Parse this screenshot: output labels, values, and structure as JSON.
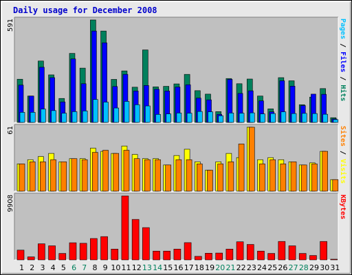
{
  "title": "Daily usage for December 2008",
  "colors": {
    "hits": "#00805c",
    "files": "#0000ff",
    "pages": "#00c0ff",
    "visits": "#ffff00",
    "sites": "#ff8000",
    "kbytes": "#ff0000",
    "weekend_label": "#00805c"
  },
  "chart_data": [
    {
      "type": "bar",
      "ylabel_max": "591",
      "legend": [
        {
          "name": "Pages",
          "color": "#00c0ff"
        },
        {
          "name": "Files",
          "color": "#0000ff"
        },
        {
          "name": "Hits",
          "color": "#00805c"
        }
      ],
      "ylim": [
        0,
        591
      ],
      "x": [
        1,
        2,
        3,
        4,
        5,
        6,
        7,
        8,
        9,
        10,
        11,
        12,
        13,
        14,
        15,
        16,
        17,
        18,
        19,
        20,
        21,
        22,
        23,
        24,
        25,
        26,
        27,
        28,
        29,
        30,
        31
      ],
      "series": [
        {
          "name": "Hits",
          "values": [
            249,
            152,
            354,
            274,
            138,
            398,
            313,
            591,
            527,
            248,
            297,
            203,
            418,
            205,
            208,
            222,
            277,
            183,
            163,
            62,
            253,
            223,
            250,
            152,
            78,
            258,
            240,
            102,
            146,
            195,
            27
          ]
        },
        {
          "name": "Files",
          "values": [
            215,
            152,
            318,
            258,
            118,
            366,
            223,
            527,
            459,
            207,
            277,
            181,
            213,
            191,
            181,
            204,
            217,
            140,
            130,
            46,
            248,
            167,
            182,
            124,
            61,
            240,
            209,
            97,
            163,
            162,
            20
          ]
        },
        {
          "name": "Pages",
          "values": [
            58,
            58,
            77,
            68,
            53,
            62,
            66,
            132,
            117,
            83,
            121,
            102,
            95,
            46,
            49,
            54,
            53,
            63,
            61,
            38,
            54,
            53,
            55,
            49,
            51,
            61,
            51,
            52,
            51,
            47,
            16
          ]
        }
      ]
    },
    {
      "type": "bar",
      "ylabel_max": "61",
      "legend": [
        {
          "name": "Sites",
          "color": "#ff8000"
        },
        {
          "name": "Visits",
          "color": "#ffff00"
        }
      ],
      "ylim": [
        0,
        61
      ],
      "x": [
        1,
        2,
        3,
        4,
        5,
        6,
        7,
        8,
        9,
        10,
        11,
        12,
        13,
        14,
        15,
        16,
        17,
        18,
        19,
        20,
        21,
        22,
        23,
        24,
        25,
        26,
        27,
        28,
        29,
        30,
        31
      ],
      "series": [
        {
          "name": "Visits",
          "values": [
            26,
            30,
            33,
            36,
            28,
            31,
            31,
            41,
            38,
            36,
            43,
            35,
            31,
            31,
            25,
            34,
            40,
            28,
            20,
            28,
            36,
            32,
            61,
            30,
            32,
            30,
            28,
            25,
            27,
            38,
            11
          ]
        },
        {
          "name": "Sites",
          "values": [
            26,
            28,
            28,
            30,
            28,
            31,
            30,
            37,
            39,
            36,
            39,
            31,
            30,
            30,
            25,
            30,
            30,
            26,
            20,
            26,
            28,
            45,
            61,
            26,
            30,
            26,
            28,
            25,
            26,
            38,
            11
          ]
        }
      ]
    },
    {
      "type": "bar",
      "ylabel_max": "9908",
      "legend": [
        {
          "name": "KBytes",
          "color": "#ff0000"
        }
      ],
      "ylim": [
        0,
        9908
      ],
      "x": [
        1,
        2,
        3,
        4,
        5,
        6,
        7,
        8,
        9,
        10,
        11,
        12,
        13,
        14,
        15,
        16,
        17,
        18,
        19,
        20,
        21,
        22,
        23,
        24,
        25,
        26,
        27,
        28,
        29,
        30,
        31
      ],
      "series": [
        {
          "name": "KBytes",
          "values": [
            1512,
            465,
            2494,
            2180,
            1000,
            2653,
            2571,
            3309,
            3605,
            1674,
            9908,
            6270,
            5000,
            1360,
            1360,
            1674,
            2671,
            547,
            1034,
            1059,
            1674,
            2807,
            2392,
            1362,
            1002,
            2856,
            2179,
            1000,
            680,
            2856,
            70
          ]
        }
      ]
    }
  ],
  "x_labels": [
    "1",
    "2",
    "3",
    "4",
    "5",
    "6",
    "7",
    "8",
    "9",
    "10",
    "11",
    "12",
    "13",
    "14",
    "15",
    "16",
    "17",
    "18",
    "19",
    "20",
    "21",
    "22",
    "23",
    "24",
    "25",
    "26",
    "27",
    "28",
    "29",
    "30",
    "31"
  ],
  "weekend_days": [
    6,
    7,
    13,
    14,
    20,
    21,
    27,
    28
  ]
}
